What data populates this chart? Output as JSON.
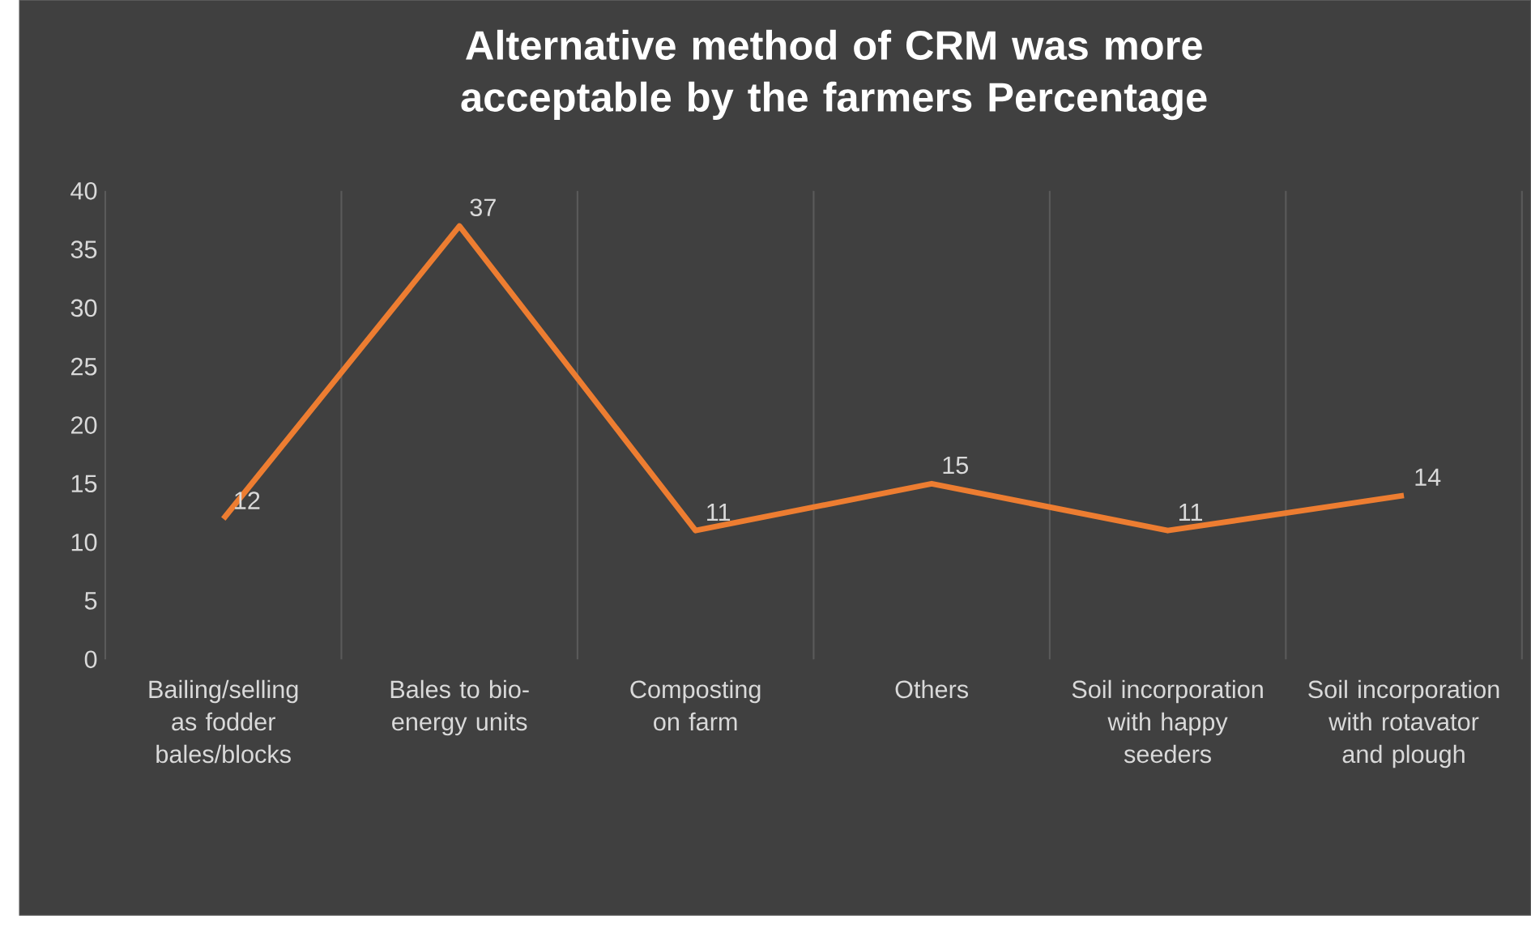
{
  "chart_data": {
    "type": "line",
    "title": "Alternative method of CRM was more acceptable by the farmers Percentage",
    "categories": [
      "Bailing/selling as fodder bales/blocks",
      "Bales to bio-energy units",
      "Composting on farm",
      "Others",
      "Soil incorporation with happy seeders",
      "Soil incorporation with rotavator and plough"
    ],
    "values": [
      12,
      37,
      11,
      15,
      11,
      14
    ],
    "color": "#ed7d31",
    "ylim": [
      0,
      40
    ],
    "yticks": [
      0,
      5,
      10,
      15,
      20,
      25,
      30,
      35,
      40
    ],
    "grid": "x",
    "data_labels": true,
    "marker": "none",
    "line_style": "solid"
  }
}
